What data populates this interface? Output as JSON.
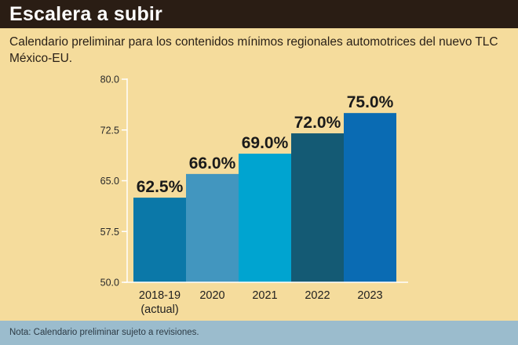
{
  "header": {
    "title": "Escalera a subir",
    "subtitle": "Calendario preliminar para los contenidos mínimos regionales automotrices del nuevo TLC México-EU."
  },
  "footer": {
    "note": "Nota: Calendario preliminar sujeto a revisiones."
  },
  "colors": {
    "background": "#f5dc9c",
    "title_bar": "#2a1d14",
    "footer_bar": "#9bbccd",
    "axis": "#ffffff",
    "label_text": "#1a1a1a"
  },
  "chart_data": {
    "type": "bar",
    "title": "",
    "xlabel": "",
    "ylabel": "",
    "ylim": [
      50,
      80
    ],
    "yticks": [
      "50.0",
      "57.5",
      "65.0",
      "72.5",
      "80.0"
    ],
    "ytick_values": [
      50,
      57.5,
      65,
      72.5,
      80
    ],
    "grid": false,
    "legend": "none",
    "categories": [
      [
        "2018-19",
        "(actual)"
      ],
      [
        "2020"
      ],
      [
        "2021"
      ],
      [
        "2022"
      ],
      [
        "2023"
      ]
    ],
    "values": [
      62.5,
      66.0,
      69.0,
      72.0,
      75.0
    ],
    "data_labels": [
      "62.5%",
      "66.0%",
      "69.0%",
      "72.0%",
      "75.0%"
    ],
    "bar_colors": [
      "#0b78a8",
      "#4296bf",
      "#00a4d0",
      "#145a74",
      "#0a6bb3"
    ]
  }
}
